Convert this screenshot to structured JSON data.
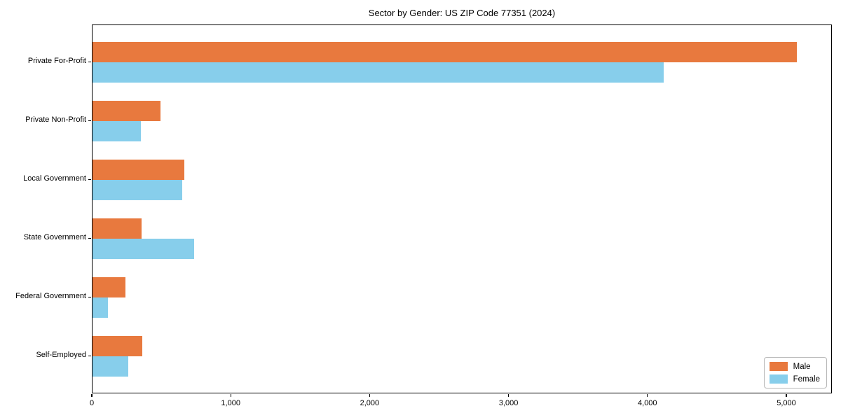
{
  "chart_data": {
    "type": "bar",
    "orientation": "horizontal",
    "title": "Sector by Gender: US ZIP Code 77351 (2024)",
    "categories": [
      "Private For-Profit",
      "Private Non-Profit",
      "Local Government",
      "State Government",
      "Federal Government",
      "Self-Employed"
    ],
    "series": [
      {
        "name": "Male",
        "color": "#e8793e",
        "values": [
          5070,
          490,
          660,
          355,
          235,
          360
        ]
      },
      {
        "name": "Female",
        "color": "#87ceeb",
        "values": [
          4110,
          350,
          645,
          730,
          110,
          255
        ]
      }
    ],
    "xlabel": "",
    "ylabel": "",
    "xlim": [
      0,
      5328
    ],
    "xticks": [
      0,
      1000,
      2000,
      3000,
      4000,
      5000
    ],
    "xtick_labels": [
      "0",
      "1,000",
      "2,000",
      "3,000",
      "4,000",
      "5,000"
    ],
    "grid": false,
    "legend_position": "lower right",
    "legend": {
      "entries": [
        "Male",
        "Female"
      ]
    }
  }
}
